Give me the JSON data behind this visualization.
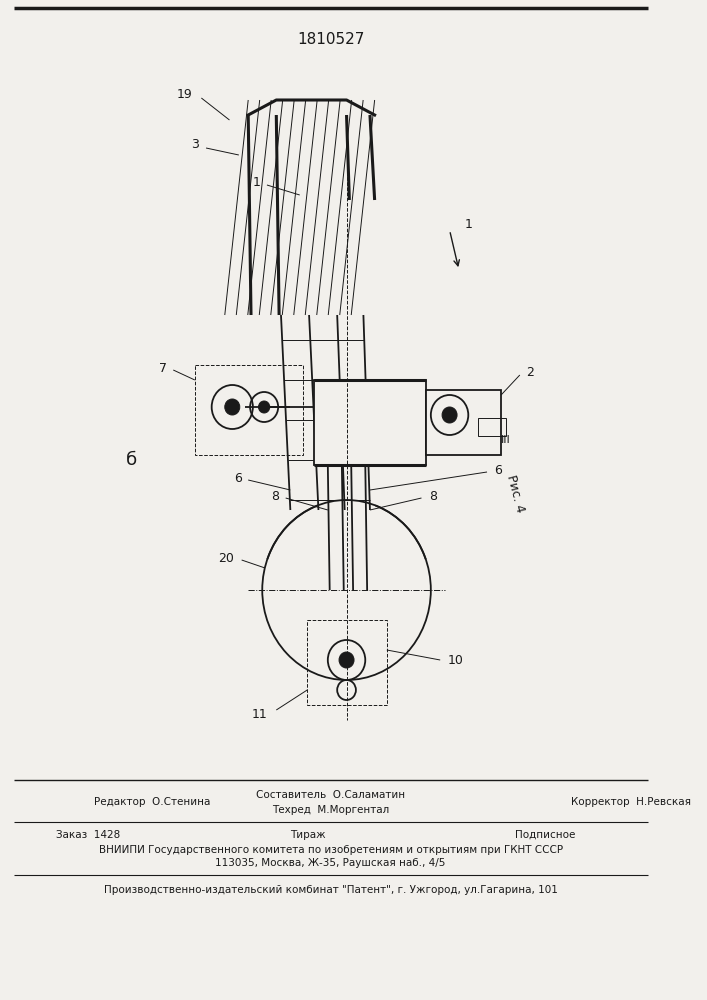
{
  "title_number": "1810527",
  "bg_color": "#f2f0ec",
  "line_color": "#1a1a1a",
  "lw_main": 1.3,
  "lw_thick": 2.2,
  "lw_thin": 0.7,
  "lw_med": 1.0,
  "footer": {
    "editor": "Редактор  О.Стенина",
    "compiler1": "Составитель  О.Саламатин",
    "compiler2": "Техред  М.Моргентал",
    "corrector": "Корректор  Н.Ревская",
    "order": "Заказ  1428",
    "tiraz": "Тираж",
    "podp": "Подписное",
    "vniipи": "ВНИИПИ Государственного комитета по изобретениям и открытиям при ГКНТ СССР",
    "address": "113035, Москва, Ж-35, Раушская наб., 4/5",
    "patent": "Производственно-издательский комбинат \"Патент\", г. Ужгород, ул.Гагарина, 101"
  }
}
